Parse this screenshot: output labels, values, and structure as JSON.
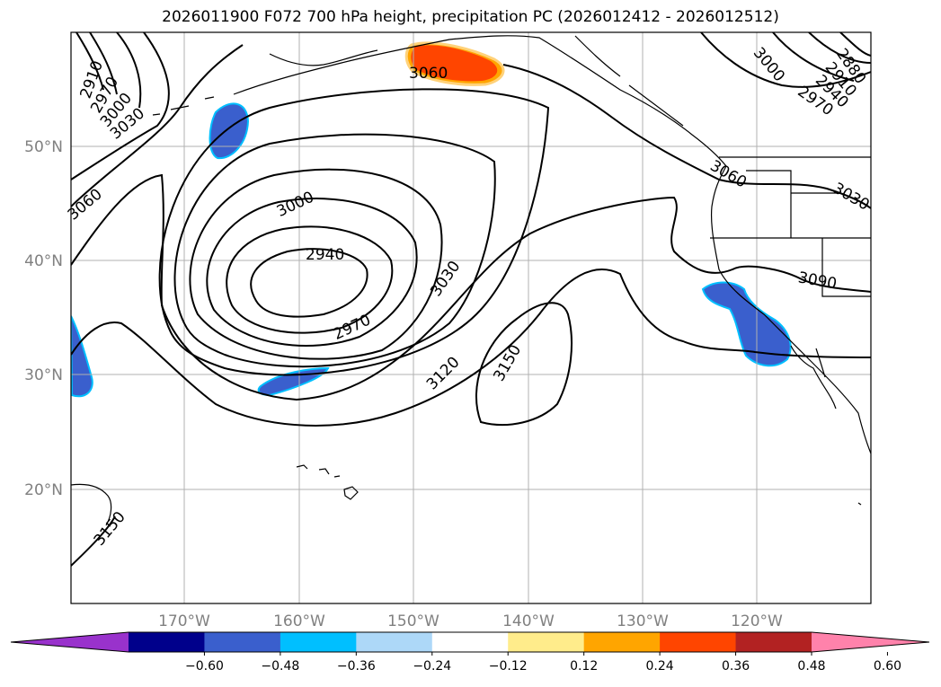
{
  "title": "2026011900 F072 700 hPa height, precipitation PC (2026012412 - 2026012512)",
  "map": {
    "lat_labels": [
      "50°N",
      "40°N",
      "30°N",
      "20°N"
    ],
    "lon_labels": [
      "170°W",
      "160°W",
      "150°W",
      "140°W",
      "130°W",
      "120°W"
    ],
    "contour_labels": [
      "2910",
      "2970",
      "3000",
      "3030",
      "3060",
      "2940",
      "3000",
      "3030",
      "2970",
      "3060",
      "3120",
      "3150",
      "3150",
      "3000",
      "2880",
      "2910",
      "2940",
      "2970",
      "3030",
      "3090",
      "3060"
    ],
    "grid": true,
    "coastline_color": "#000000"
  },
  "colorbar": {
    "ticks": [
      "−0.60",
      "−0.48",
      "−0.36",
      "−0.24",
      "−0.12",
      "0.12",
      "0.24",
      "0.36",
      "0.48",
      "0.60"
    ],
    "colors": [
      "#9932cc",
      "#00008b",
      "#3a5fcd",
      "#00bfff",
      "#add8f8",
      "#ffffff",
      "#ffec8b",
      "#ffa500",
      "#ff4500",
      "#b22222",
      "#ff82ab"
    ],
    "extend": "both"
  }
}
